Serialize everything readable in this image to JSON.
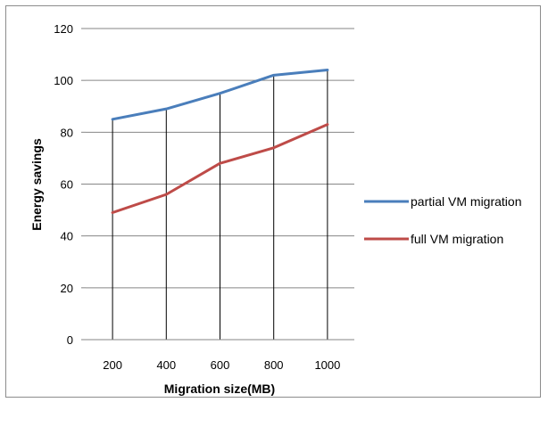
{
  "chart_data": {
    "type": "line",
    "title": "",
    "xlabel": "Migration size(MB)",
    "ylabel": "Energy savings",
    "categories": [
      "200",
      "400",
      "600",
      "800",
      "1000"
    ],
    "ylim": [
      0,
      120
    ],
    "yticks": [
      "0",
      "20",
      "40",
      "60",
      "80",
      "100",
      "120"
    ],
    "grid": "horizontal and vertical",
    "legend_position": "right",
    "series": [
      {
        "name": "partial VM migration",
        "color": "#4a7ebb",
        "values": [
          85,
          89,
          95,
          102,
          104
        ]
      },
      {
        "name": "full VM migration",
        "color": "#be4b48",
        "values": [
          49,
          56,
          68,
          74,
          83
        ]
      }
    ]
  }
}
